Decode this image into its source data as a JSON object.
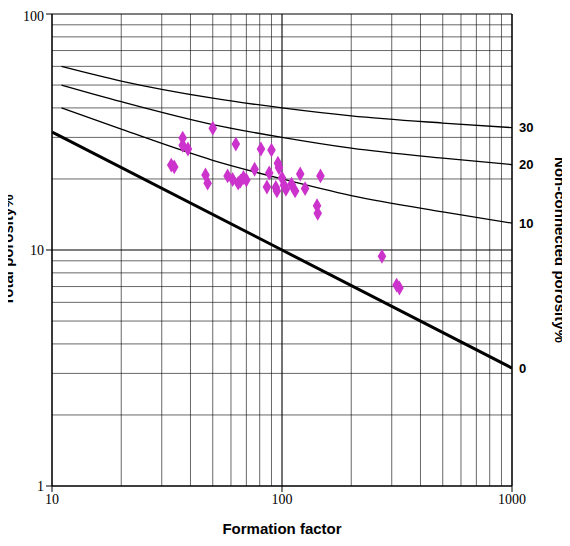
{
  "chart_data": {
    "type": "scatter",
    "x_label": "Formation factor",
    "y_label": "Total porosity%",
    "y2_label": "Non-connected porosity%",
    "log": true,
    "grid": true,
    "xlim": [
      10,
      1000
    ],
    "ylim": [
      1,
      100
    ],
    "xticks": [
      10,
      100,
      1000
    ],
    "yticks": [
      1,
      10,
      100
    ],
    "points": {
      "color": "#cc33cc",
      "marker": "diamond",
      "x": [
        33,
        34,
        37,
        37,
        39,
        50,
        46.5,
        47.5,
        58,
        61,
        64.5,
        66,
        68,
        70,
        63,
        76,
        81,
        88,
        86,
        90,
        94,
        95,
        96,
        97,
        100,
        102,
        104,
        110,
        114,
        120,
        126,
        147,
        142,
        143,
        272,
        315,
        324
      ],
      "y": [
        22.9,
        22.5,
        29.8,
        27.8,
        26.8,
        32.8,
        20.8,
        19.2,
        20.6,
        19.9,
        19.2,
        19.6,
        20.3,
        19.8,
        28.1,
        22,
        26.8,
        21.2,
        18.5,
        26.5,
        18.4,
        17.8,
        23.3,
        22.3,
        20.2,
        18.8,
        18.1,
        19,
        17.8,
        21,
        18.2,
        20.6,
        15.4,
        14.3,
        9.4,
        7.1,
        6.9
      ]
    },
    "curves": [
      {
        "label": "30",
        "color": "#000000",
        "line_style": "solid",
        "x": [
          11,
          20,
          50,
          100,
          200,
          500,
          1000
        ],
        "y": [
          60,
          52,
          44,
          40,
          37,
          34.5,
          33
        ]
      },
      {
        "label": "20",
        "color": "#000000",
        "line_style": "solid",
        "x": [
          11,
          20,
          50,
          100,
          200,
          500,
          1000
        ],
        "y": [
          50,
          42.5,
          34,
          30,
          27,
          24.5,
          23
        ]
      },
      {
        "label": "10",
        "color": "#000000",
        "line_style": "solid",
        "x": [
          11,
          20,
          50,
          100,
          200,
          500,
          1000
        ],
        "y": [
          40,
          32.5,
          24,
          20,
          17,
          14.5,
          13
        ]
      },
      {
        "label": "0",
        "color": "#000000",
        "line_style": "bold",
        "x": [
          10,
          100,
          1000
        ],
        "y": [
          31.6,
          10,
          3.16
        ]
      }
    ]
  }
}
